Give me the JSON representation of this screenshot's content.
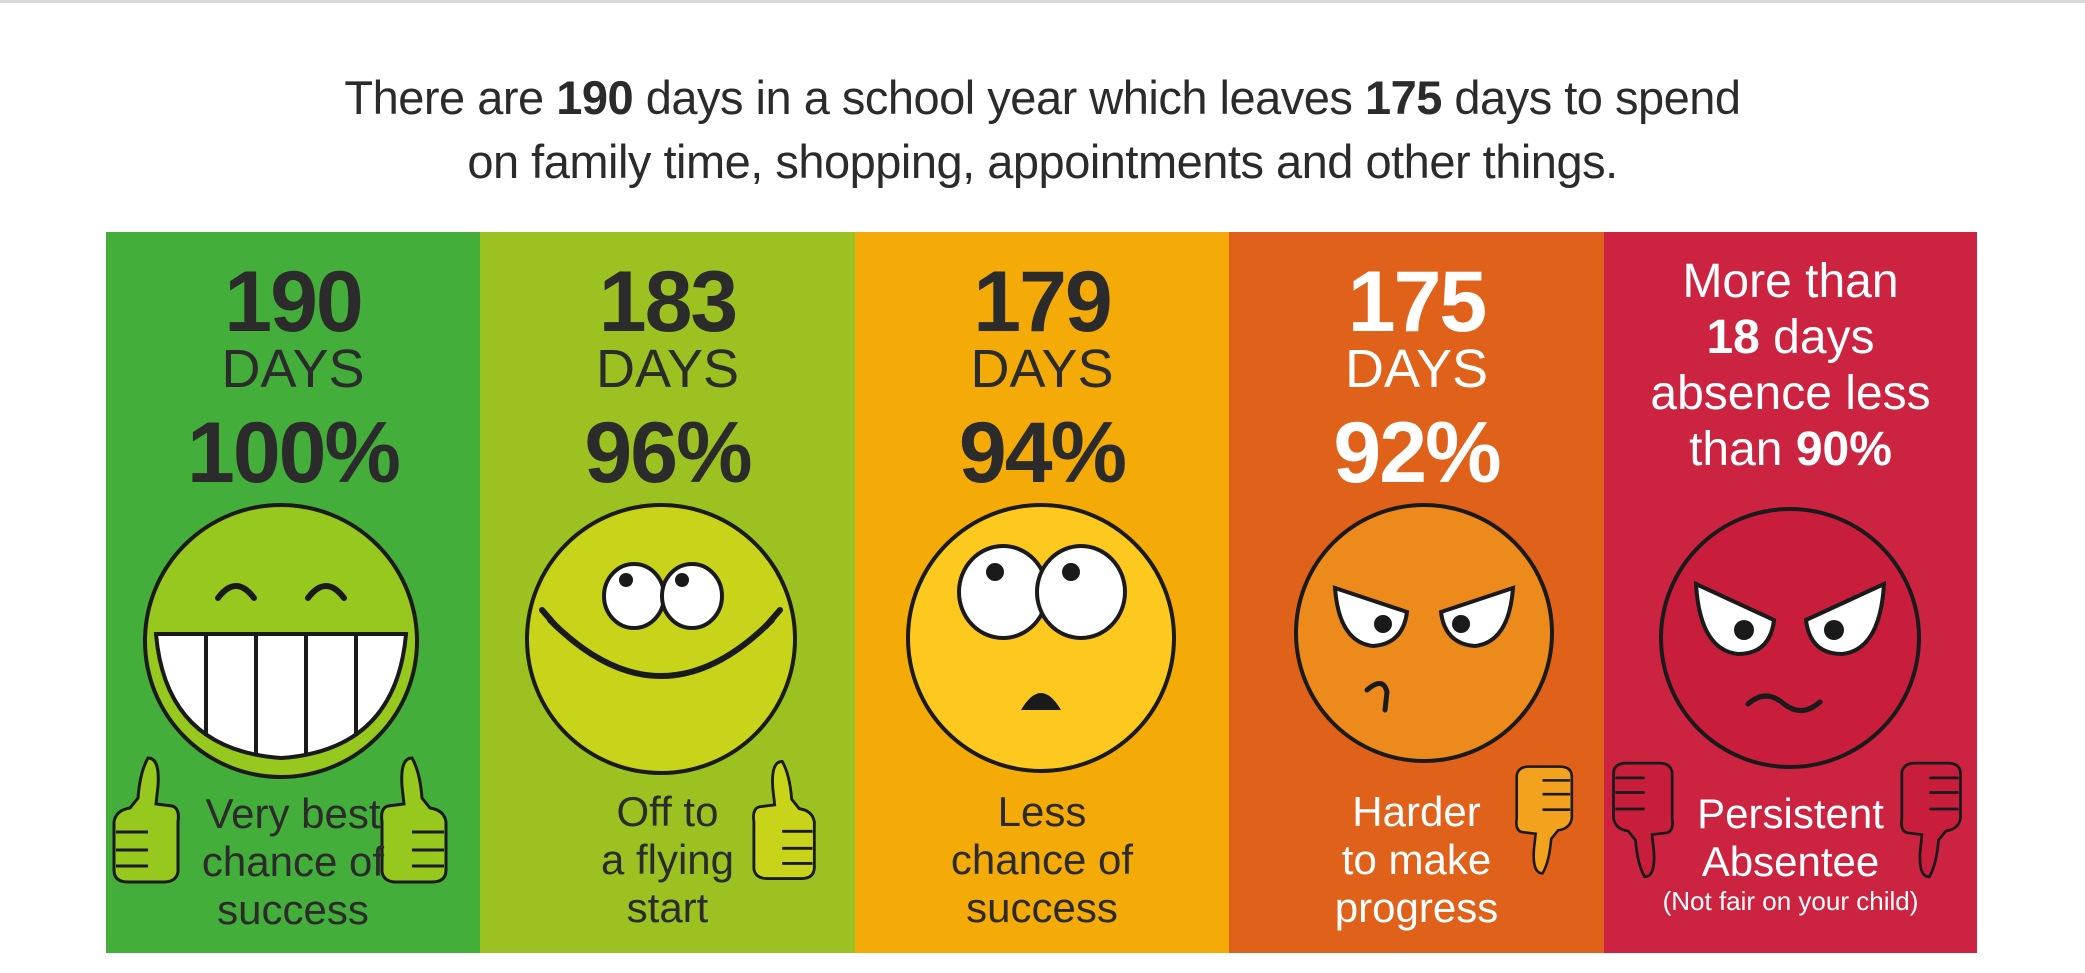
{
  "headline": {
    "line1": {
      "pre": "There are ",
      "num1": "190",
      "mid": " days in a school year which leaves ",
      "num2": "175",
      "post": " days to spend"
    },
    "line2": "on family time, shopping, appointments and other things."
  },
  "colors": {
    "green": "#43ae39",
    "lime": "#9cc221",
    "amber": "#f5ab07",
    "orange": "#e0621a",
    "red": "#cc2340",
    "text_dark": "#2b2b2b",
    "text_light": "#ffffff"
  },
  "panels": [
    {
      "days": "190",
      "days_word": "DAYS",
      "percent": "100%",
      "attendance_percent": 100,
      "face_icon": "grinning-face-icon",
      "thumb_icon": "thumbs-up-icon",
      "caption": [
        "Very best",
        "chance of",
        "success"
      ]
    },
    {
      "days": "183",
      "days_word": "DAYS",
      "percent": "96%",
      "attendance_percent": 96,
      "face_icon": "smiling-face-icon",
      "thumb_icon": "thumbs-up-icon",
      "caption": [
        "Off to",
        "a flying",
        "start"
      ]
    },
    {
      "days": "179",
      "days_word": "DAYS",
      "percent": "94%",
      "attendance_percent": 94,
      "face_icon": "surprised-face-icon",
      "caption": [
        "Less",
        "chance of",
        "success"
      ]
    },
    {
      "days": "175",
      "days_word": "DAYS",
      "percent": "92%",
      "attendance_percent": 92,
      "face_icon": "annoyed-face-icon",
      "thumb_icon": "thumbs-down-icon",
      "caption": [
        "Harder",
        "to make",
        "progress"
      ]
    },
    {
      "absence": {
        "line1": "More than",
        "line2_num": "18",
        "line2_rest": " days",
        "line3": "absence less",
        "line4_pre": "than ",
        "line4_num": "90%"
      },
      "face_icon": "angry-face-icon",
      "thumb_icon": "thumbs-down-icon",
      "caption": [
        "Persistent",
        "Absentee"
      ],
      "note": "(Not fair on your child)"
    }
  ]
}
